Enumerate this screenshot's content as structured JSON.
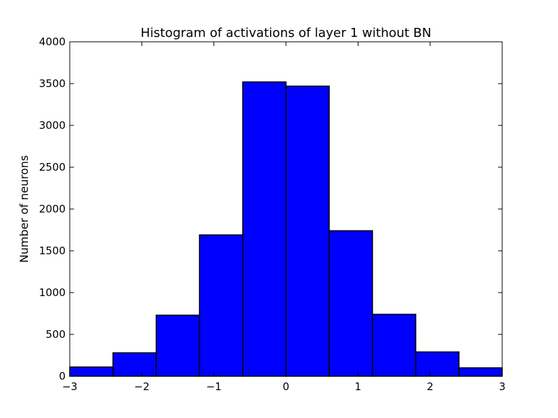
{
  "chart_data": {
    "type": "bar",
    "title": "Histogram of activations of layer 1  without BN",
    "xlabel": "",
    "ylabel": "Number of neurons",
    "xlim": [
      -3,
      3
    ],
    "ylim": [
      0,
      4000
    ],
    "x_ticks": [
      -3,
      -2,
      -1,
      0,
      1,
      2,
      3
    ],
    "x_tick_labels": [
      "−3",
      "−2",
      "−1",
      "0",
      "1",
      "2",
      "3"
    ],
    "y_ticks": [
      0,
      500,
      1000,
      1500,
      2000,
      2500,
      3000,
      3500,
      4000
    ],
    "y_tick_labels": [
      "0",
      "500",
      "1000",
      "1500",
      "2000",
      "2500",
      "3000",
      "3500",
      "4000"
    ],
    "bin_edges": [
      -3.0,
      -2.4,
      -1.8,
      -1.2,
      -0.6,
      0.0,
      0.6,
      1.2,
      1.8,
      2.4,
      3.0
    ],
    "values": [
      110,
      280,
      730,
      1690,
      3520,
      3470,
      1740,
      740,
      290,
      100
    ],
    "bar_color": "#0000ff",
    "edge_color": "#000000",
    "grid": false
  }
}
